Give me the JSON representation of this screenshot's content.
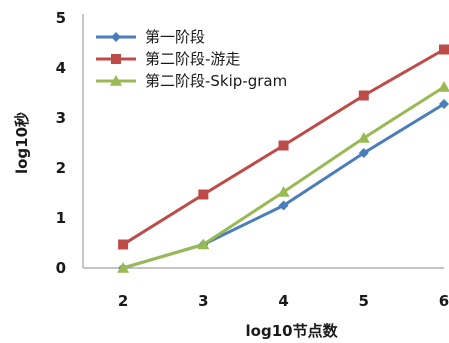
{
  "chart_data": {
    "type": "line",
    "xlabel": "log10节点数",
    "ylabel": "log10秒",
    "x": [
      2,
      3,
      4,
      5,
      6
    ],
    "xlim": [
      1.5,
      6
    ],
    "ylim": [
      0,
      5
    ],
    "yticks": [
      0,
      1,
      2,
      3,
      4,
      5
    ],
    "legend_position": "top-left",
    "grid": false,
    "series": [
      {
        "name": "第一阶段",
        "color": "#4a7ebb",
        "marker": "diamond",
        "values": [
          0.0,
          0.47,
          1.25,
          2.3,
          3.28
        ]
      },
      {
        "name": "第二阶段-游走",
        "color": "#be4b48",
        "marker": "square",
        "values": [
          0.47,
          1.47,
          2.45,
          3.45,
          4.37
        ]
      },
      {
        "name": "第二阶段-Skip-gram",
        "color": "#98b954",
        "marker": "triangle",
        "values": [
          0.0,
          0.47,
          1.52,
          2.6,
          3.62
        ]
      }
    ]
  }
}
